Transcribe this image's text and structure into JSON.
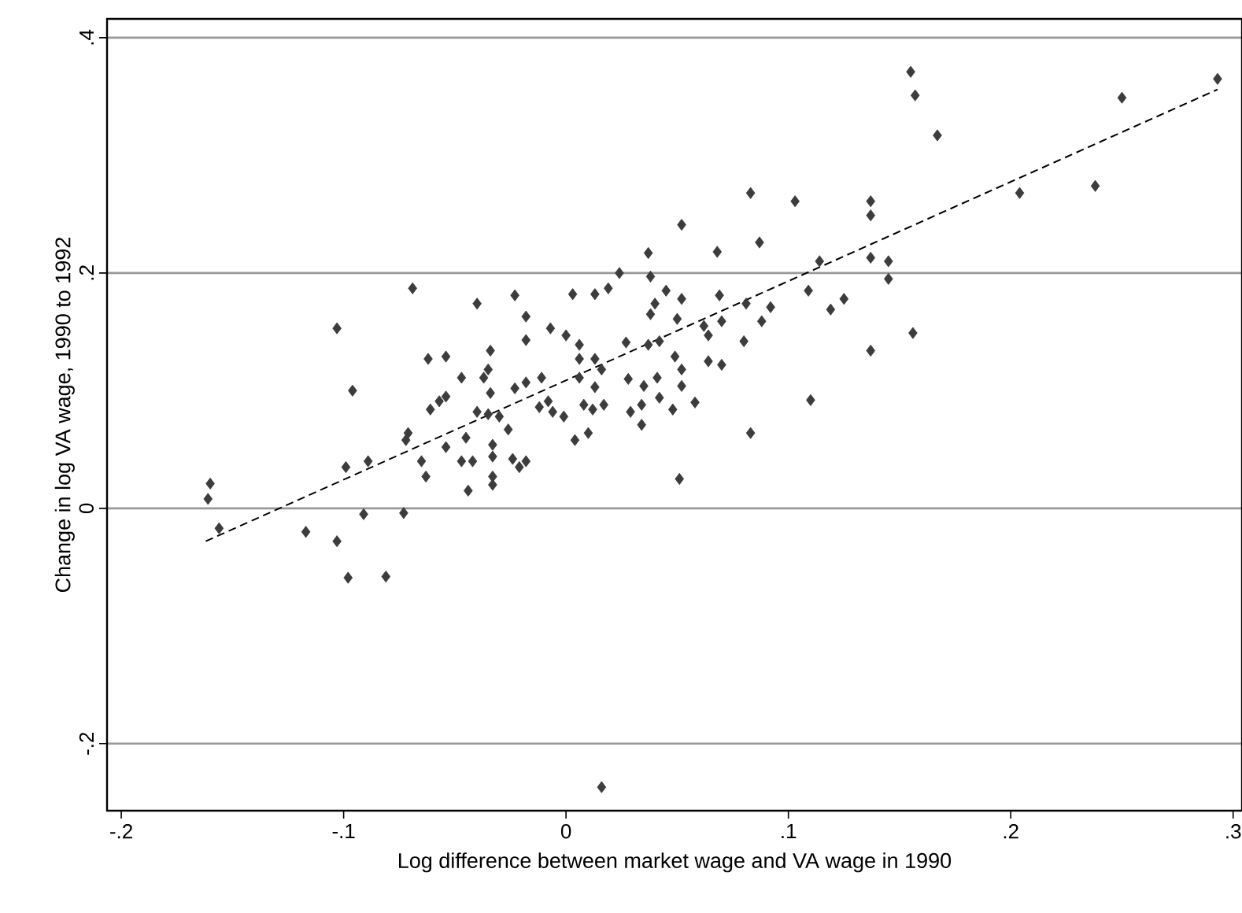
{
  "chart_data": {
    "type": "scatter",
    "xlabel": "Log difference between market wage and VA wage in 1990",
    "ylabel": "Change in log VA wage, 1990 to 1992",
    "xlim": [
      -0.2064,
      0.304
    ],
    "ylim": [
      -0.257,
      0.416
    ],
    "xticks": [
      {
        "value": -0.2,
        "label": "-.2"
      },
      {
        "value": -0.1,
        "label": "-.1"
      },
      0,
      {
        "value": 0.1,
        "label": ".1"
      },
      {
        "value": 0.2,
        "label": ".2"
      },
      {
        "value": 0.3,
        "label": ".3"
      }
    ],
    "yticks": [
      {
        "value": -0.2,
        "label": "-.2"
      },
      0,
      {
        "value": 0.2,
        "label": ".2"
      },
      {
        "value": 0.4,
        "label": ".4"
      }
    ],
    "grid": "y",
    "series": [
      {
        "marker": "diamond",
        "color": "#3c3c3c",
        "x": [
          -0.069,
          -0.103,
          -0.096,
          -0.071,
          -0.072,
          -0.099,
          -0.089,
          -0.16,
          -0.161,
          -0.156,
          -0.117,
          -0.103,
          -0.091,
          -0.073,
          -0.098,
          -0.081,
          0.037,
          -0.04,
          -0.023,
          -0.018,
          -0.018,
          0.003,
          0.013,
          0.019,
          0.024,
          0.038,
          0.045,
          0.04,
          0.052,
          0.038,
          0.05,
          -0.007,
          0.0,
          0.006,
          0.006,
          0.027,
          0.037,
          0.042,
          -0.062,
          -0.054,
          -0.034,
          0.049,
          0.052,
          -0.047,
          -0.037,
          -0.035,
          0.013,
          0.016,
          0.028,
          0.035,
          0.041,
          0.052,
          -0.011,
          -0.018,
          -0.023,
          -0.034,
          -0.061,
          -0.057,
          -0.054,
          0.013,
          0.006,
          -0.012,
          -0.008,
          -0.006,
          -0.001,
          0.008,
          0.012,
          0.017,
          0.034,
          0.042,
          0.048,
          0.029,
          0.034,
          -0.04,
          -0.035,
          -0.03,
          -0.026,
          -0.045,
          -0.054,
          -0.033,
          -0.033,
          0.004,
          0.01,
          -0.065,
          -0.063,
          -0.047,
          -0.042,
          -0.024,
          -0.021,
          -0.018,
          -0.033,
          -0.033,
          -0.044,
          0.051,
          0.157,
          0.155,
          0.167,
          0.083,
          0.103,
          0.137,
          0.137,
          0.052,
          0.068,
          0.087,
          0.114,
          0.137,
          0.145,
          0.145,
          0.069,
          0.081,
          0.092,
          0.109,
          0.119,
          0.125,
          0.062,
          0.064,
          0.07,
          0.088,
          0.08,
          0.064,
          0.07,
          0.058,
          0.156,
          0.137,
          0.11,
          0.083,
          0.293,
          0.25,
          0.204,
          0.238,
          0.016
        ],
        "values": [
          0.187,
          0.153,
          0.1,
          0.064,
          0.058,
          0.035,
          0.04,
          0.021,
          0.008,
          -0.017,
          -0.02,
          -0.028,
          -0.005,
          -0.004,
          -0.059,
          -0.058,
          0.217,
          0.174,
          0.181,
          0.163,
          0.143,
          0.182,
          0.182,
          0.187,
          0.2,
          0.197,
          0.185,
          0.174,
          0.178,
          0.165,
          0.161,
          0.153,
          0.147,
          0.139,
          0.127,
          0.141,
          0.139,
          0.142,
          0.127,
          0.129,
          0.134,
          0.129,
          0.118,
          0.111,
          0.111,
          0.118,
          0.127,
          0.118,
          0.11,
          0.104,
          0.111,
          0.104,
          0.111,
          0.107,
          0.102,
          0.098,
          0.084,
          0.091,
          0.095,
          0.103,
          0.111,
          0.086,
          0.091,
          0.082,
          0.078,
          0.088,
          0.084,
          0.088,
          0.088,
          0.094,
          0.084,
          0.082,
          0.071,
          0.082,
          0.08,
          0.078,
          0.067,
          0.06,
          0.052,
          0.054,
          0.044,
          0.058,
          0.064,
          0.04,
          0.027,
          0.04,
          0.04,
          0.042,
          0.035,
          0.04,
          0.027,
          0.02,
          0.015,
          0.025,
          0.351,
          0.371,
          0.317,
          0.268,
          0.261,
          0.261,
          0.249,
          0.241,
          0.218,
          0.226,
          0.21,
          0.213,
          0.21,
          0.195,
          0.181,
          0.174,
          0.171,
          0.185,
          0.169,
          0.178,
          0.155,
          0.147,
          0.159,
          0.159,
          0.142,
          0.125,
          0.122,
          0.09,
          0.149,
          0.134,
          0.092,
          0.064,
          0.365,
          0.349,
          0.268,
          0.274,
          -0.237
        ]
      },
      {
        "type": "line",
        "color": "#000000",
        "line_style": "dashed",
        "x": [
          -0.162,
          0.293
        ],
        "values": [
          -0.028,
          0.356
        ]
      }
    ]
  }
}
